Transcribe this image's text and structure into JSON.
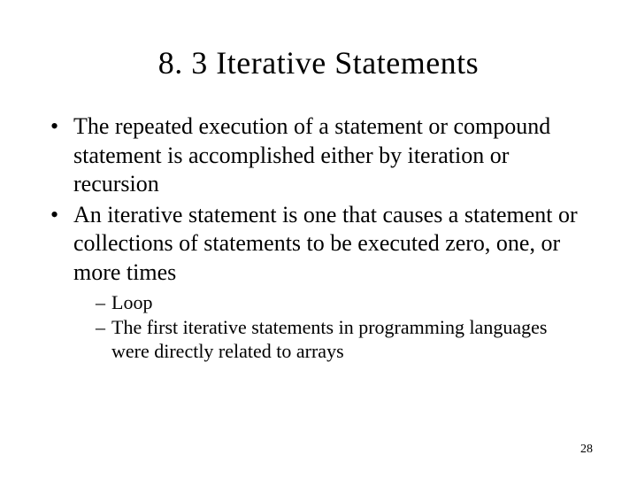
{
  "slide": {
    "title": "8. 3 Iterative Statements",
    "bullets": [
      {
        "text": "The repeated execution of a statement or compound statement is accomplished either by iteration or recursion"
      },
      {
        "text": "An iterative statement is one that causes a statement or collections of statements to be executed zero, one, or more times",
        "subs": [
          "Loop",
          "The first iterative statements in programming languages were directly related to arrays"
        ]
      }
    ],
    "page_number": "28"
  },
  "style": {
    "background_color": "#ffffff",
    "text_color": "#000000",
    "title_fontsize": 36,
    "body_fontsize": 26,
    "sub_fontsize": 22,
    "pagenum_fontsize": 14,
    "font_family": "Times New Roman"
  }
}
